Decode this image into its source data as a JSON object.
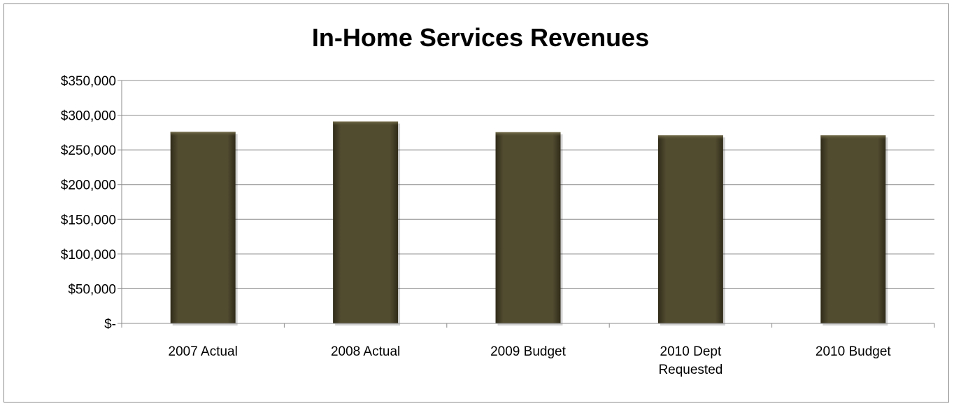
{
  "chart_data": {
    "type": "bar",
    "title": "In-Home Services Revenues",
    "categories": [
      [
        "2007 Actual"
      ],
      [
        "2008 Actual"
      ],
      [
        "2009 Budget"
      ],
      [
        "2010 Dept",
        "Requested"
      ],
      [
        "2010 Budget"
      ]
    ],
    "values": [
      276000,
      291000,
      275500,
      271000,
      271000
    ],
    "ylim": [
      0,
      350000
    ],
    "yticks": [
      0,
      50000,
      100000,
      150000,
      200000,
      250000,
      300000,
      350000
    ],
    "ytick_labels": [
      "$-",
      "$50,000",
      "$100,000",
      "$150,000",
      "$200,000",
      "$250,000",
      "$300,000",
      "$350,000"
    ],
    "grid": true,
    "legend": "none",
    "bar_color": "#514b30"
  }
}
